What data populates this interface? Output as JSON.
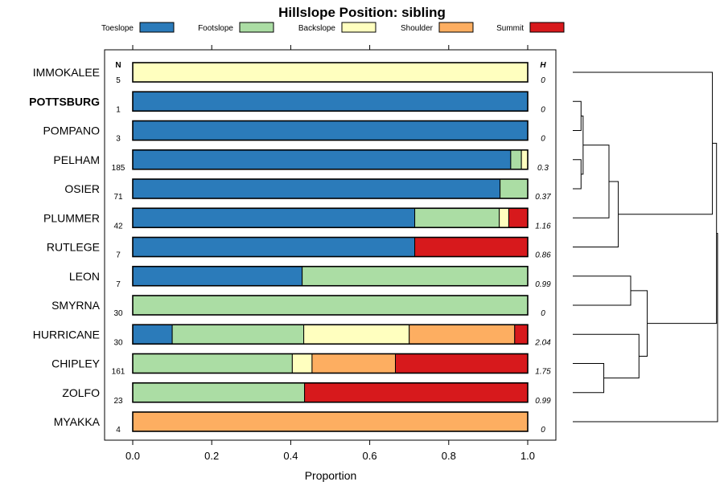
{
  "chart_data": {
    "type": "bar",
    "stacked": true,
    "orientation": "horizontal",
    "title": "Hillslope Position: sibling",
    "xlabel": "Proportion",
    "xlim": [
      0,
      1
    ],
    "xticks": [
      "0.0",
      "0.2",
      "0.4",
      "0.6",
      "0.8",
      "1.0"
    ],
    "n_header": "N",
    "h_header": "H",
    "legend": [
      {
        "name": "Toeslope",
        "color": "#2b7bba"
      },
      {
        "name": "Footslope",
        "color": "#abdda4"
      },
      {
        "name": "Backslope",
        "color": "#ffffbf"
      },
      {
        "name": "Shoulder",
        "color": "#fdae61"
      },
      {
        "name": "Summit",
        "color": "#d7191c"
      }
    ],
    "categories": [
      "IMMOKALEE",
      "POTTSBURG",
      "POMPANO",
      "PELHAM",
      "OSIER",
      "PLUMMER",
      "RUTLEGE",
      "LEON",
      "SMYRNA",
      "HURRICANE",
      "CHIPLEY",
      "ZOLFO",
      "MYAKKA"
    ],
    "highlight": "POTTSBURG",
    "n": [
      "5",
      "1",
      "3",
      "185",
      "71",
      "42",
      "7",
      "7",
      "30",
      "30",
      "161",
      "23",
      "4"
    ],
    "h": [
      "0",
      "0",
      "0",
      "0.3",
      "0.37",
      "1.16",
      "0.86",
      "0.99",
      "0",
      "2.04",
      "1.75",
      "0.99",
      "0"
    ],
    "series": [
      {
        "name": "Toeslope",
        "values": [
          0,
          1,
          1,
          0.957,
          0.93,
          0.714,
          0.714,
          0.429,
          0,
          0.1,
          0,
          0,
          0
        ]
      },
      {
        "name": "Footslope",
        "values": [
          0,
          0,
          0,
          0.027,
          0.07,
          0.214,
          0,
          0.571,
          1,
          0.333,
          0.404,
          0.435,
          0
        ]
      },
      {
        "name": "Backslope",
        "values": [
          1,
          0,
          0,
          0.016,
          0,
          0.024,
          0,
          0,
          0,
          0.267,
          0.05,
          0,
          0
        ]
      },
      {
        "name": "Shoulder",
        "values": [
          0,
          0,
          0,
          0,
          0,
          0,
          0,
          0,
          0,
          0.267,
          0.211,
          0,
          1
        ]
      },
      {
        "name": "Summit",
        "values": [
          0,
          0,
          0,
          0,
          0,
          0.048,
          0.286,
          0,
          0,
          0.033,
          0.335,
          0.565,
          0
        ]
      }
    ],
    "dendrogram": {
      "merges": [
        [
          [
            "POTTSBURG"
          ],
          [
            "POMPANO"
          ],
          0.8
        ],
        [
          [
            "PELHAM"
          ],
          [
            "OSIER"
          ],
          0.8
        ],
        [
          [
            "POTTSBURG",
            "POMPANO"
          ],
          [
            "PELHAM",
            "OSIER"
          ],
          1.0
        ],
        [
          [
            "POTTSBURG",
            "POMPANO",
            "PELHAM",
            "OSIER"
          ],
          [
            "PLUMMER"
          ],
          3.5
        ],
        [
          [
            "POTTSBURG",
            "POMPANO",
            "PELHAM",
            "OSIER",
            "PLUMMER"
          ],
          [
            "RUTLEGE"
          ],
          4.4
        ],
        [
          [
            "IMMOKALEE"
          ],
          [
            "POTTSBURG",
            "POMPANO",
            "PELHAM",
            "OSIER",
            "PLUMMER",
            "RUTLEGE"
          ],
          13.5
        ],
        [
          [
            "LEON"
          ],
          [
            "SMYRNA"
          ],
          5.6
        ],
        [
          [
            "CHIPLEY"
          ],
          [
            "ZOLFO"
          ],
          3.0
        ],
        [
          [
            "HURRICANE"
          ],
          [
            "CHIPLEY",
            "ZOLFO"
          ],
          6.4
        ],
        [
          [
            "LEON",
            "SMYRNA"
          ],
          [
            "HURRICANE",
            "CHIPLEY",
            "ZOLFO"
          ],
          7.2
        ],
        [
          [
            "IMMOKALEE",
            "POTTSBURG",
            "POMPANO",
            "PELHAM",
            "OSIER",
            "PLUMMER",
            "RUTLEGE"
          ],
          [
            "LEON",
            "SMYRNA",
            "HURRICANE",
            "CHIPLEY",
            "ZOLFO"
          ],
          13.9
        ],
        [
          [
            "IMMOKALEE",
            "POTTSBURG",
            "POMPANO",
            "PELHAM",
            "OSIER",
            "PLUMMER",
            "RUTLEGE",
            "LEON",
            "SMYRNA",
            "HURRICANE",
            "CHIPLEY",
            "ZOLFO"
          ],
          [
            "MYAKKA"
          ],
          14.0
        ]
      ]
    }
  }
}
